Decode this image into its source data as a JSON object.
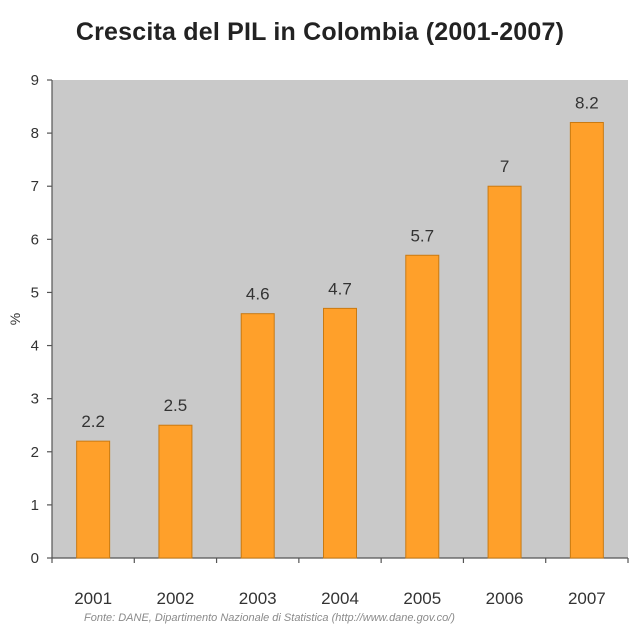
{
  "chart_data": {
    "type": "bar",
    "title": "Crescita del PIL in Colombia (2001-2007)",
    "xlabel": "",
    "ylabel": "%",
    "categories": [
      "2001",
      "2002",
      "2003",
      "2004",
      "2005",
      "2006",
      "2007"
    ],
    "values": [
      2.2,
      2.5,
      4.6,
      4.7,
      5.7,
      7,
      8.2
    ],
    "data_labels": [
      "2.2",
      "2.5",
      "4.6",
      "4.7",
      "5.7",
      "7",
      "8.2"
    ],
    "ylim": [
      0,
      9
    ],
    "yticks": [
      "0",
      "1",
      "2",
      "3",
      "4",
      "5",
      "6",
      "7",
      "8",
      "9"
    ],
    "grid": false,
    "legend": "none",
    "plot_background": "#c9c9c9",
    "bar_color": "#ffa02a",
    "bar_edge_color": "#c97a12",
    "source": "Fonte: DANE, Dipartimento Nazionale di Statistica (http://www.dane.gov.co/)"
  }
}
